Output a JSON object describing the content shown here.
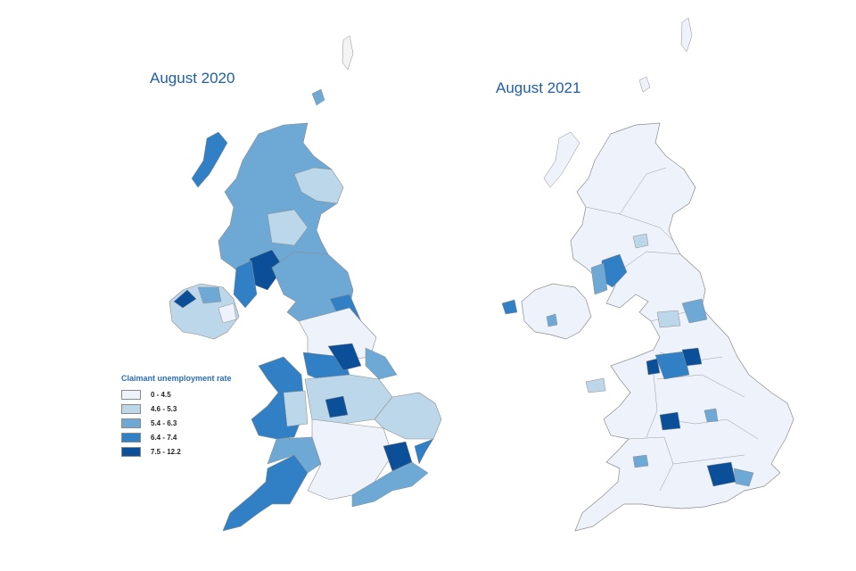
{
  "maps": [
    {
      "title": "August 2020"
    },
    {
      "title": "August 2021"
    }
  ],
  "legend": {
    "title": "Claimant unemployment rate",
    "items": [
      {
        "label": "0 - 4.5",
        "color": "#eef2fb"
      },
      {
        "label": "4.6 - 5.3",
        "color": "#bdd7ea"
      },
      {
        "label": "5.4 - 6.3",
        "color": "#6ea9d6"
      },
      {
        "label": "6.4 - 7.4",
        "color": "#3180c6"
      },
      {
        "label": "7.5 - 12.2",
        "color": "#0b4f99"
      }
    ]
  },
  "colors": {
    "outline": "#8c8c8c",
    "title": "#1f5fa8"
  }
}
